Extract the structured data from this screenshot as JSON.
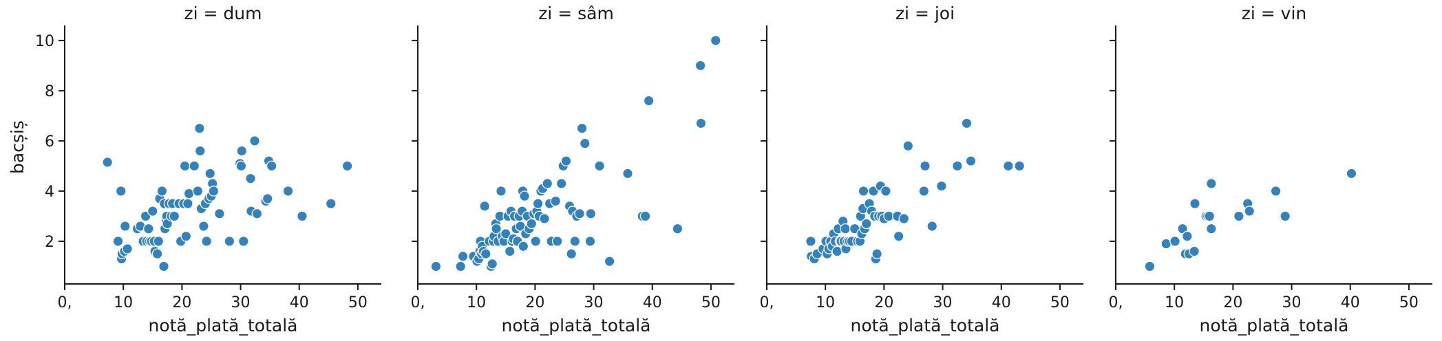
{
  "chart_data": {
    "type": "scatter",
    "ylabel": "bacșiș",
    "ylim": [
      0.3,
      10.6
    ],
    "yticks": [
      "2",
      "4",
      "6",
      "8",
      "10"
    ],
    "yticks_values": [
      2,
      4,
      6,
      8,
      10
    ],
    "xlim": [
      0,
      54
    ],
    "xticks": [
      "0,",
      "10",
      "20",
      "30",
      "40",
      "50"
    ],
    "xticks_values": [
      0,
      10,
      20,
      30,
      40,
      50
    ],
    "grid": false,
    "panels": [
      {
        "title": "zi = dum",
        "xlabel": "notă_plată_totală",
        "points": [
          [
            7.3,
            5.15
          ],
          [
            9.1,
            2.0
          ],
          [
            9.6,
            4.0
          ],
          [
            9.7,
            1.3
          ],
          [
            9.8,
            1.5
          ],
          [
            10.2,
            1.6
          ],
          [
            10.3,
            2.6
          ],
          [
            10.7,
            1.7
          ],
          [
            12.4,
            2.5
          ],
          [
            12.9,
            2.6
          ],
          [
            13.4,
            2.0
          ],
          [
            13.8,
            3.0
          ],
          [
            14.0,
            2.0
          ],
          [
            14.3,
            2.5
          ],
          [
            14.5,
            2.0
          ],
          [
            14.8,
            2.0
          ],
          [
            15.0,
            3.2
          ],
          [
            15.3,
            2.0
          ],
          [
            15.4,
            1.6
          ],
          [
            15.8,
            1.5
          ],
          [
            16.0,
            2.0
          ],
          [
            16.2,
            3.7
          ],
          [
            16.6,
            4.0
          ],
          [
            16.9,
            1.0
          ],
          [
            17.0,
            3.5
          ],
          [
            17.1,
            2.5
          ],
          [
            17.3,
            2.8
          ],
          [
            17.4,
            3.0
          ],
          [
            17.5,
            2.7
          ],
          [
            17.8,
            3.5
          ],
          [
            18.2,
            3.0
          ],
          [
            18.4,
            3.5
          ],
          [
            18.7,
            3.0
          ],
          [
            19.5,
            3.5
          ],
          [
            19.8,
            2.0
          ],
          [
            20.3,
            3.5
          ],
          [
            20.5,
            5.0
          ],
          [
            20.7,
            2.2
          ],
          [
            21.0,
            3.5
          ],
          [
            21.2,
            3.9
          ],
          [
            22.1,
            5.0
          ],
          [
            22.7,
            4.0
          ],
          [
            23.0,
            6.5
          ],
          [
            23.1,
            5.6
          ],
          [
            23.3,
            3.3
          ],
          [
            23.7,
            2.6
          ],
          [
            24.0,
            3.5
          ],
          [
            24.2,
            2.0
          ],
          [
            24.6,
            3.7
          ],
          [
            24.8,
            4.7
          ],
          [
            25.0,
            3.8
          ],
          [
            25.2,
            4.3
          ],
          [
            25.4,
            4.0
          ],
          [
            26.4,
            3.1
          ],
          [
            28.1,
            2.0
          ],
          [
            29.9,
            5.1
          ],
          [
            30.1,
            5.0
          ],
          [
            30.2,
            5.6
          ],
          [
            30.5,
            2.0
          ],
          [
            31.7,
            4.5
          ],
          [
            31.8,
            3.2
          ],
          [
            32.4,
            6.0
          ],
          [
            32.8,
            3.1
          ],
          [
            34.3,
            3.6
          ],
          [
            34.6,
            3.7
          ],
          [
            34.8,
            5.2
          ],
          [
            35.3,
            5.0
          ],
          [
            38.1,
            4.0
          ],
          [
            40.5,
            3.0
          ],
          [
            45.4,
            3.5
          ],
          [
            48.2,
            5.0
          ]
        ]
      },
      {
        "title": "zi = sâm",
        "xlabel": "notă_plată_totală",
        "points": [
          [
            3.1,
            1.0
          ],
          [
            7.3,
            1.0
          ],
          [
            7.7,
            1.4
          ],
          [
            9.5,
            1.4
          ],
          [
            10.1,
            1.2
          ],
          [
            10.4,
            1.3
          ],
          [
            10.6,
            1.6
          ],
          [
            10.7,
            2.0
          ],
          [
            10.9,
            1.5
          ],
          [
            11.0,
            1.8
          ],
          [
            11.2,
            1.6
          ],
          [
            11.4,
            3.4
          ],
          [
            11.6,
            1.5
          ],
          [
            12.2,
            2.0
          ],
          [
            12.5,
            1.0
          ],
          [
            12.7,
            1.1
          ],
          [
            12.9,
            2.0
          ],
          [
            13.0,
            2.2
          ],
          [
            13.3,
            2.7
          ],
          [
            13.4,
            2.5
          ],
          [
            13.7,
            2.0
          ],
          [
            14.0,
            3.0
          ],
          [
            14.2,
            4.0
          ],
          [
            14.4,
            2.2
          ],
          [
            14.7,
            2.0
          ],
          [
            15.0,
            2.3
          ],
          [
            15.4,
            3.0
          ],
          [
            15.7,
            1.6
          ],
          [
            15.9,
            3.2
          ],
          [
            16.1,
            2.0
          ],
          [
            16.3,
            2.1
          ],
          [
            16.5,
            3.0
          ],
          [
            16.8,
            2.5
          ],
          [
            17.0,
            2.0
          ],
          [
            17.3,
            3.0
          ],
          [
            17.5,
            2.6
          ],
          [
            17.8,
            3.2
          ],
          [
            17.9,
            4.0
          ],
          [
            18.0,
            1.8
          ],
          [
            18.2,
            3.8
          ],
          [
            18.4,
            2.3
          ],
          [
            18.7,
            3.0
          ],
          [
            19.0,
            2.5
          ],
          [
            19.4,
            2.7
          ],
          [
            19.8,
            3.1
          ],
          [
            20.1,
            2.0
          ],
          [
            20.3,
            3.2
          ],
          [
            20.5,
            3.5
          ],
          [
            20.7,
            3.0
          ],
          [
            21.0,
            4.0
          ],
          [
            21.3,
            4.1
          ],
          [
            21.6,
            2.9
          ],
          [
            22.1,
            4.3
          ],
          [
            22.5,
            3.5
          ],
          [
            22.8,
            2.0
          ],
          [
            23.5,
            3.6
          ],
          [
            23.8,
            2.0
          ],
          [
            24.5,
            4.3
          ],
          [
            24.8,
            5.0
          ],
          [
            25.3,
            5.2
          ],
          [
            25.9,
            3.4
          ],
          [
            26.2,
            1.5
          ],
          [
            26.4,
            3.2
          ],
          [
            26.8,
            2.0
          ],
          [
            27.1,
            3.0
          ],
          [
            27.6,
            3.1
          ],
          [
            28.0,
            6.5
          ],
          [
            28.5,
            5.9
          ],
          [
            29.4,
            2.0
          ],
          [
            29.5,
            3.1
          ],
          [
            31.0,
            5.0
          ],
          [
            32.7,
            1.2
          ],
          [
            35.8,
            4.7
          ],
          [
            38.3,
            3.0
          ],
          [
            38.8,
            3.0
          ],
          [
            39.4,
            7.6
          ],
          [
            44.3,
            2.5
          ],
          [
            48.2,
            9.0
          ],
          [
            48.3,
            6.7
          ],
          [
            50.8,
            10.0
          ]
        ]
      },
      {
        "title": "zi = joi",
        "xlabel": "notă_plată_totală",
        "points": [
          [
            7.5,
            2.0
          ],
          [
            7.6,
            1.4
          ],
          [
            8.1,
            1.3
          ],
          [
            8.6,
            1.5
          ],
          [
            9.6,
            1.7
          ],
          [
            10.1,
            2.0
          ],
          [
            10.3,
            1.5
          ],
          [
            10.6,
            1.7
          ],
          [
            10.9,
            2.0
          ],
          [
            11.2,
            1.8
          ],
          [
            11.4,
            2.3
          ],
          [
            11.7,
            2.0
          ],
          [
            12.0,
            1.6
          ],
          [
            12.2,
            2.5
          ],
          [
            12.5,
            2.0
          ],
          [
            12.7,
            2.0
          ],
          [
            13.0,
            2.8
          ],
          [
            13.2,
            2.0
          ],
          [
            13.4,
            2.5
          ],
          [
            13.5,
            1.7
          ],
          [
            13.8,
            2.0
          ],
          [
            14.1,
            2.0
          ],
          [
            14.5,
            2.0
          ],
          [
            15.0,
            2.5
          ],
          [
            15.5,
            2.0
          ],
          [
            15.9,
            2.0
          ],
          [
            16.0,
            3.0
          ],
          [
            16.2,
            2.3
          ],
          [
            16.4,
            3.3
          ],
          [
            16.5,
            4.0
          ],
          [
            16.7,
            2.5
          ],
          [
            17.0,
            2.7
          ],
          [
            17.5,
            3.5
          ],
          [
            17.9,
            3.2
          ],
          [
            18.2,
            4.0
          ],
          [
            18.4,
            3.0
          ],
          [
            18.6,
            1.3
          ],
          [
            18.8,
            1.5
          ],
          [
            19.1,
            3.0
          ],
          [
            19.4,
            4.2
          ],
          [
            19.6,
            3.0
          ],
          [
            20.0,
            2.9
          ],
          [
            20.3,
            4.0
          ],
          [
            20.8,
            3.0
          ],
          [
            22.3,
            3.0
          ],
          [
            22.5,
            2.2
          ],
          [
            23.4,
            2.9
          ],
          [
            24.1,
            5.8
          ],
          [
            26.8,
            4.0
          ],
          [
            27.0,
            5.0
          ],
          [
            28.2,
            2.6
          ],
          [
            29.8,
            4.2
          ],
          [
            32.5,
            5.0
          ],
          [
            34.1,
            6.7
          ],
          [
            34.8,
            5.2
          ],
          [
            41.2,
            5.0
          ],
          [
            43.1,
            5.0
          ]
        ]
      },
      {
        "title": "zi = vin",
        "xlabel": "notă_plată_totală",
        "points": [
          [
            5.8,
            1.0
          ],
          [
            8.6,
            1.9
          ],
          [
            10.1,
            2.0
          ],
          [
            11.4,
            2.5
          ],
          [
            11.9,
            1.5
          ],
          [
            12.2,
            2.2
          ],
          [
            12.5,
            1.5
          ],
          [
            13.4,
            1.6
          ],
          [
            13.5,
            3.5
          ],
          [
            15.4,
            3.0
          ],
          [
            15.7,
            3.0
          ],
          [
            16.0,
            3.0
          ],
          [
            16.3,
            4.3
          ],
          [
            16.3,
            2.5
          ],
          [
            21.0,
            3.0
          ],
          [
            22.5,
            3.5
          ],
          [
            22.8,
            3.2
          ],
          [
            27.3,
            4.0
          ],
          [
            28.9,
            3.0
          ],
          [
            40.2,
            4.7
          ]
        ]
      }
    ]
  }
}
